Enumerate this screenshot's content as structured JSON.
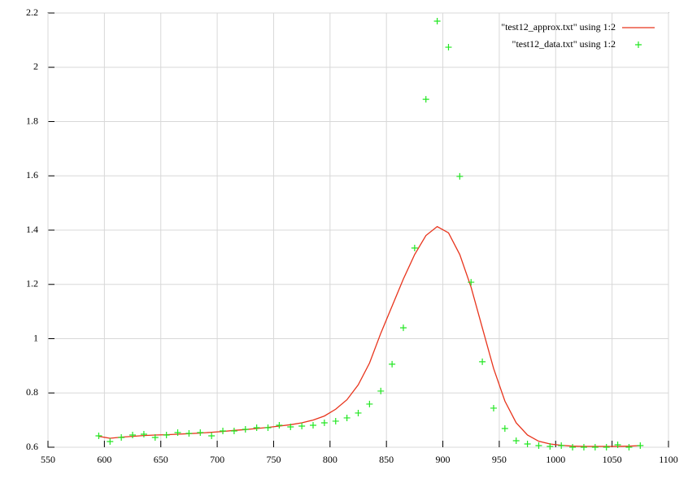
{
  "chart_data": {
    "type": "line",
    "x": [
      595,
      605,
      615,
      625,
      635,
      645,
      655,
      665,
      675,
      685,
      695,
      705,
      715,
      725,
      735,
      745,
      755,
      765,
      775,
      785,
      795,
      805,
      815,
      825,
      835,
      845,
      855,
      865,
      875,
      885,
      895,
      905,
      915,
      925,
      935,
      945,
      955,
      965,
      975,
      985,
      995,
      1005,
      1015,
      1025,
      1035,
      1045,
      1055,
      1065,
      1075
    ],
    "series": [
      {
        "name": "\"test12_approx.txt\" using 1:2",
        "color": "#e8341c",
        "style": "line",
        "values": [
          0.64,
          0.633,
          0.637,
          0.64,
          0.643,
          0.645,
          0.646,
          0.648,
          0.65,
          0.652,
          0.655,
          0.658,
          0.662,
          0.665,
          0.669,
          0.673,
          0.678,
          0.683,
          0.69,
          0.7,
          0.715,
          0.74,
          0.775,
          0.83,
          0.91,
          1.02,
          1.12,
          1.22,
          1.31,
          1.38,
          1.413,
          1.39,
          1.31,
          1.19,
          1.04,
          0.89,
          0.77,
          0.69,
          0.645,
          0.622,
          0.612,
          0.607,
          0.604,
          0.603,
          0.603,
          0.603,
          0.603,
          0.604,
          0.606
        ]
      },
      {
        "name": "\"test12_data.txt\" using 1:2",
        "color": "#22e622",
        "style": "points",
        "values": [
          0.642,
          0.621,
          0.636,
          0.645,
          0.648,
          0.636,
          0.645,
          0.654,
          0.651,
          0.654,
          0.642,
          0.66,
          0.66,
          0.666,
          0.672,
          0.672,
          0.681,
          0.675,
          0.678,
          0.681,
          0.69,
          0.696,
          0.708,
          0.726,
          0.759,
          0.807,
          0.906,
          1.04,
          1.334,
          1.882,
          2.17,
          2.074,
          1.598,
          1.208,
          0.915,
          0.744,
          0.669,
          0.624,
          0.612,
          0.606,
          0.603,
          0.606,
          0.6,
          0.6,
          0.6,
          0.6,
          0.609,
          0.6,
          0.606
        ]
      }
    ],
    "xlim": [
      550,
      1100
    ],
    "xticks": [
      550,
      600,
      650,
      700,
      750,
      800,
      850,
      900,
      950,
      1000,
      1050,
      1100
    ],
    "ylim": [
      0.6,
      2.2
    ],
    "yticks": [
      0.6,
      0.8,
      1,
      1.2,
      1.4,
      1.6,
      1.8,
      2,
      2.2
    ],
    "grid": true,
    "legend": "top-right"
  }
}
